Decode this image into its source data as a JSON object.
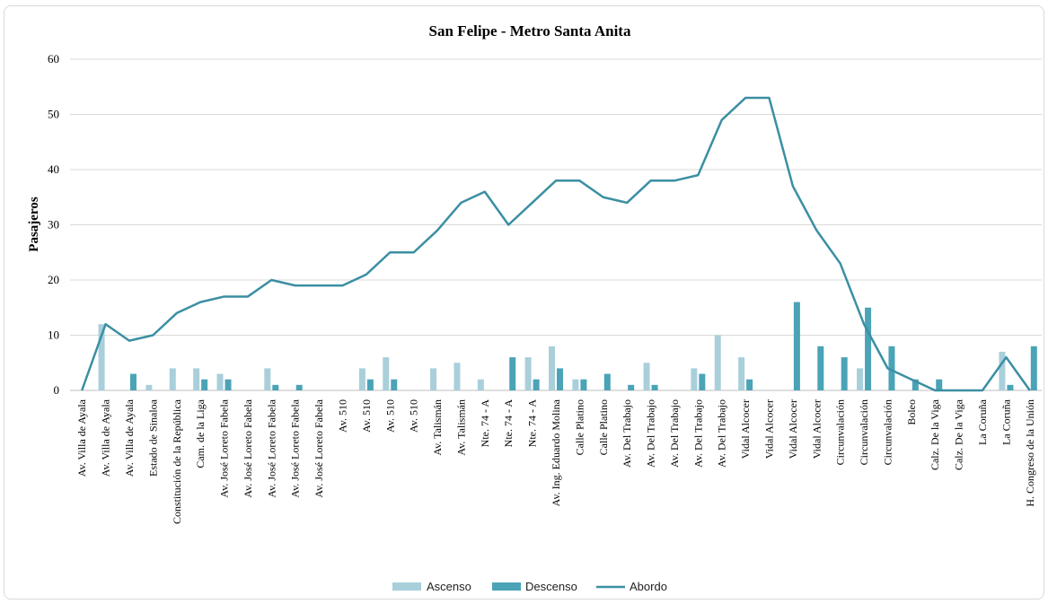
{
  "chart_data": {
    "type": "bar",
    "title": "San Felipe - Metro Santa Anita",
    "ylabel": "Pasajeros",
    "xlabel": "",
    "ylim": [
      0,
      60
    ],
    "yticks": [
      0,
      10,
      20,
      30,
      40,
      50,
      60
    ],
    "grid": true,
    "legend_position": "bottom",
    "colors": {
      "Ascenso": "#a9cfdb",
      "Descenso": "#4ba3b7",
      "Abordo": "#3b8fa3"
    },
    "categories": [
      "Av. Villa de Ayala",
      "Av. Villa de Ayala",
      "Av. Villa de Ayala",
      "Estado de Sinaloa",
      "Constitución de la República",
      "Cam. de la Liga",
      "Av. José Loreto Fabela",
      "Av. José Loreto Fabela",
      "Av. José Loreto Fabela",
      "Av. José Loreto Fabela",
      "Av. José Loreto Fabela",
      "Av. 510",
      "Av. 510",
      "Av. 510",
      "Av. 510",
      "Av. Talismán",
      "Av. Talismán",
      "Nte. 74 - A",
      "Nte. 74 - A",
      "Nte. 74 - A",
      "Av. Ing. Eduardo Molina",
      "Calle Platino",
      "Calle Platino",
      "Av. Del Trabajo",
      "Av. Del Trabajo",
      "Av. Del Trabajo",
      "Av. Del Trabajo",
      "Av. Del Trabajo",
      "Vidal Alcocer",
      "Vidal Alcocer",
      "Vidal Alcocer",
      "Vidal Alcocer",
      "Circunvalación",
      "Circunvalación",
      "Circunvalación",
      "Boleo",
      "Calz. De la Viga",
      "Calz. De la Viga",
      "La Coruña",
      "La Coruña",
      "H. Congreso de la Unión"
    ],
    "series": [
      {
        "name": "Ascenso",
        "type": "bar",
        "values": [
          0,
          12,
          0,
          1,
          4,
          4,
          3,
          0,
          4,
          0,
          0,
          0,
          4,
          6,
          0,
          4,
          5,
          2,
          0,
          6,
          8,
          2,
          0,
          0,
          5,
          0,
          4,
          10,
          6,
          0,
          0,
          0,
          0,
          4,
          0,
          0,
          0,
          0,
          0,
          7,
          0
        ]
      },
      {
        "name": "Descenso",
        "type": "bar",
        "values": [
          0,
          0,
          3,
          0,
          0,
          2,
          2,
          0,
          1,
          1,
          0,
          0,
          2,
          2,
          0,
          0,
          0,
          0,
          6,
          2,
          4,
          2,
          3,
          1,
          1,
          0,
          3,
          0,
          2,
          0,
          16,
          8,
          6,
          15,
          8,
          2,
          2,
          0,
          0,
          1,
          8
        ]
      },
      {
        "name": "Abordo",
        "type": "line",
        "values": [
          0,
          12,
          9,
          10,
          14,
          16,
          17,
          17,
          20,
          19,
          19,
          19,
          21,
          25,
          25,
          29,
          34,
          36,
          30,
          34,
          38,
          38,
          35,
          34,
          38,
          38,
          39,
          49,
          53,
          53,
          37,
          29,
          23,
          12,
          4,
          2,
          0,
          0,
          0,
          6,
          0
        ]
      }
    ]
  }
}
